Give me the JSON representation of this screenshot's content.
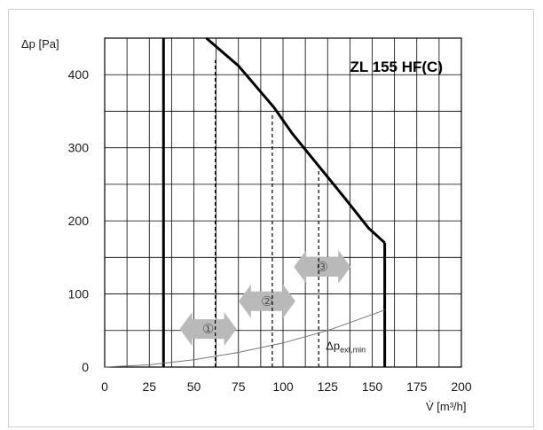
{
  "chart_data": {
    "type": "line",
    "title": "ZL 155 HF(C)",
    "xlabel": "V̇ [m³/h]",
    "ylabel": "Δp [Pa]",
    "xlim": [
      0,
      200
    ],
    "ylim": [
      0,
      450
    ],
    "x_ticks": [
      "0",
      "25",
      "50",
      "75",
      "100",
      "125",
      "150",
      "175",
      "200"
    ],
    "y_ticks": [
      "0",
      "100",
      "200",
      "300",
      "400"
    ],
    "grid": true,
    "series": [
      {
        "role": "minimum-flow-limit",
        "x": [
          33,
          33
        ],
        "y": [
          0,
          450
        ]
      },
      {
        "role": "maximum-pressure-curve",
        "x": [
          57,
          75,
          95,
          105,
          120,
          135,
          148,
          157
        ],
        "y": [
          450,
          412,
          355,
          320,
          275,
          230,
          190,
          170
        ]
      },
      {
        "role": "maximum-flow-limit",
        "x": [
          157,
          157
        ],
        "y": [
          170,
          0
        ]
      },
      {
        "name": "Δp ext,min",
        "x": [
          0,
          25,
          50,
          75,
          100,
          125,
          157
        ],
        "y": [
          0,
          3,
          10,
          20,
          33,
          50,
          78
        ]
      },
      {
        "role": "stage-line-1",
        "x": [
          62,
          62
        ],
        "y": [
          0,
          420
        ]
      },
      {
        "role": "stage-line-2",
        "x": [
          94,
          94
        ],
        "y": [
          0,
          345
        ]
      },
      {
        "role": "stage-line-3",
        "x": [
          120,
          120
        ],
        "y": [
          0,
          270
        ]
      }
    ],
    "annotations": [
      {
        "text": "①",
        "x": 58,
        "y": 52
      },
      {
        "text": "②",
        "x": 91,
        "y": 90
      },
      {
        "text": "③",
        "x": 122,
        "y": 137
      },
      {
        "text": "Δp",
        "subscript": "ext,min",
        "x": 124,
        "y": 30
      }
    ]
  }
}
